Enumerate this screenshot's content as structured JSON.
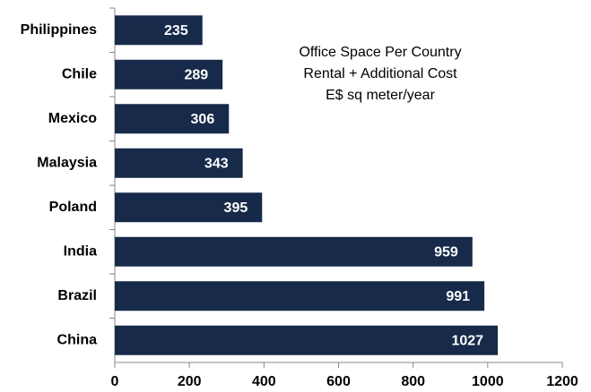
{
  "chart_data": {
    "type": "barh",
    "title": [
      "Office Space Per Country",
      "Rental + Additional Cost",
      "E$ sq meter/year"
    ],
    "categories": [
      "Philippines",
      "Chile",
      "Mexico",
      "Malaysia",
      "Poland",
      "India",
      "Brazil",
      "China"
    ],
    "values": [
      235,
      289,
      306,
      343,
      395,
      959,
      991,
      1027
    ],
    "color": "#172a4a",
    "xlim": [
      0,
      1200
    ],
    "xticks": [
      0,
      200,
      400,
      600,
      800,
      1000,
      1200
    ],
    "grid": false
  }
}
